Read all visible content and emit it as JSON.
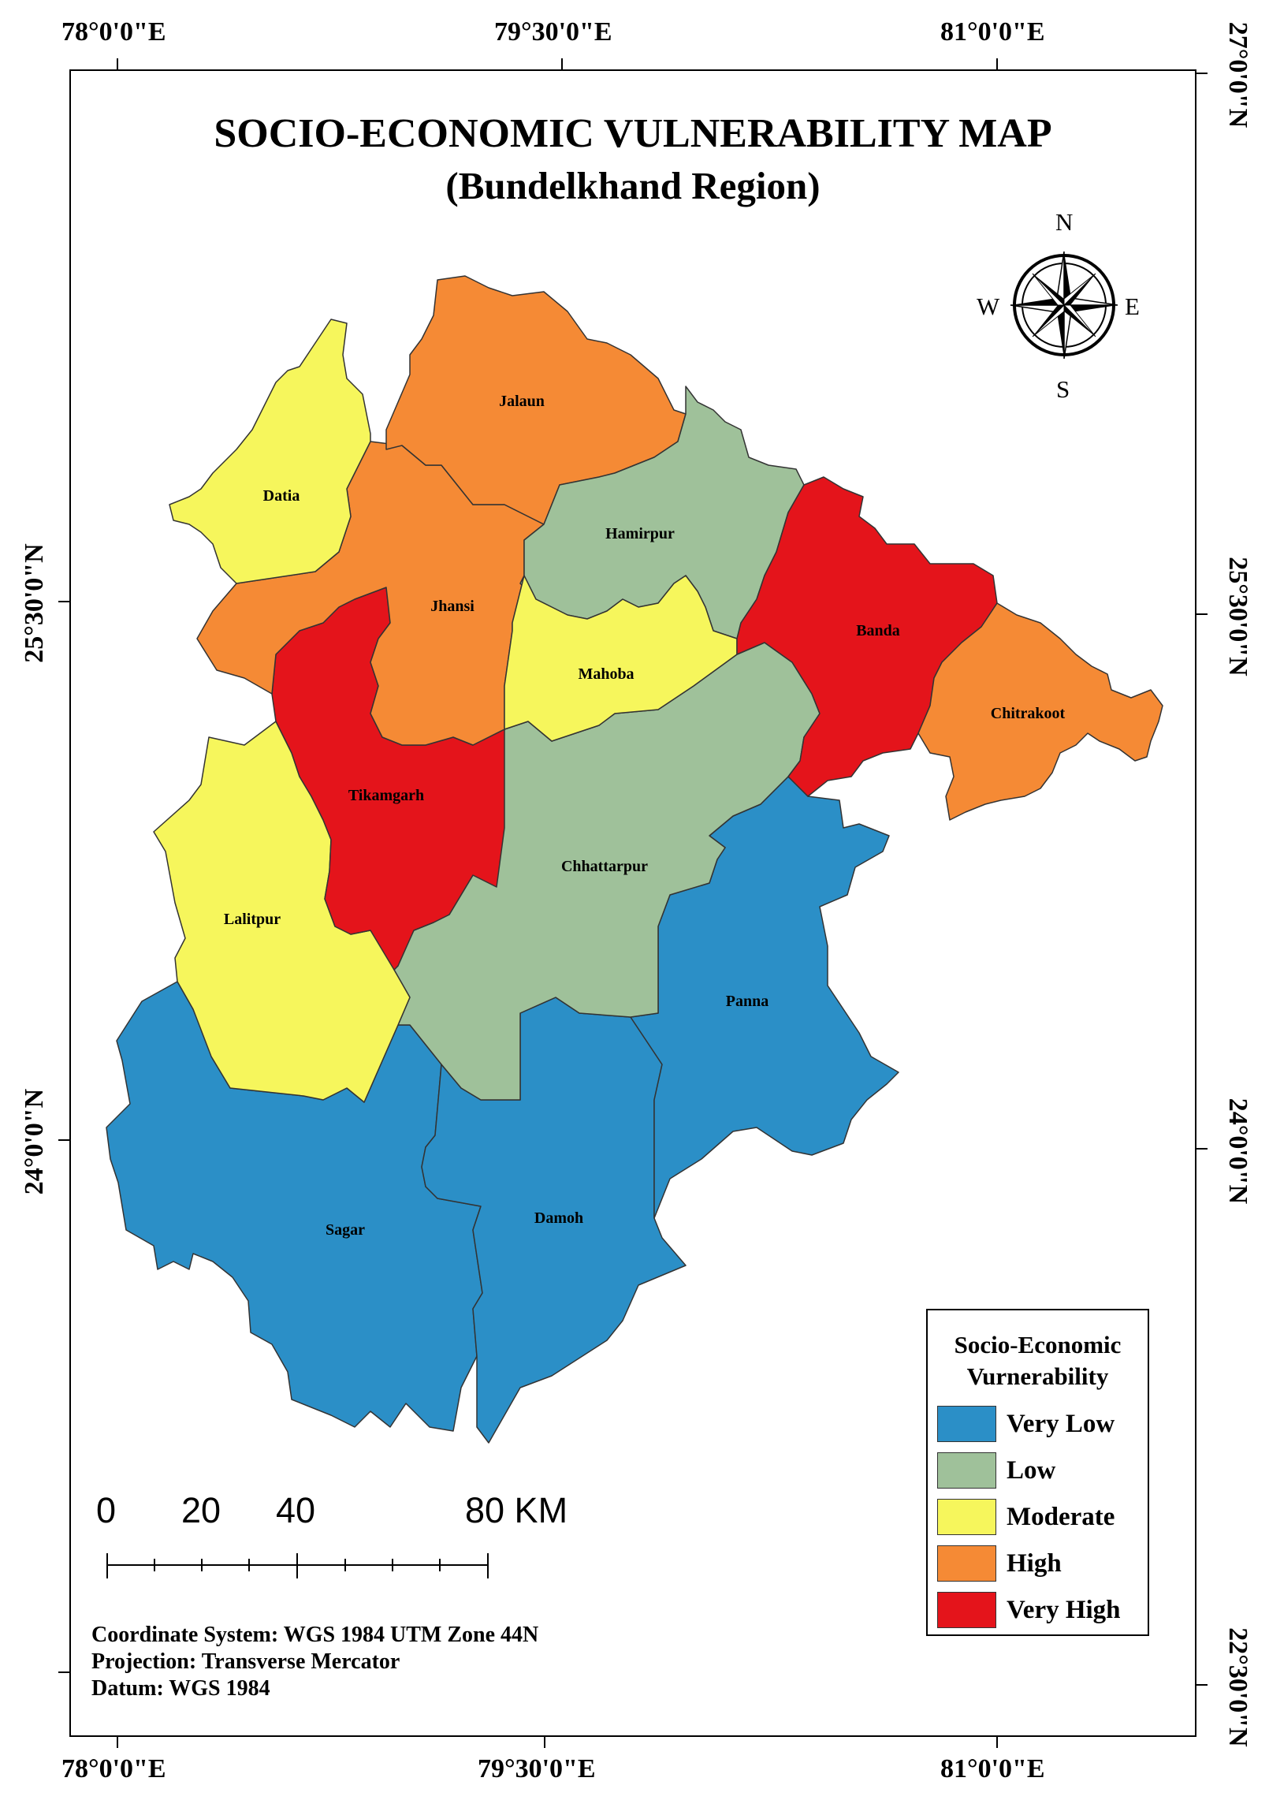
{
  "title": "SOCIO-ECONOMIC VULNERABILITY MAP",
  "subtitle": "(Bundelkhand Region)",
  "top_longitudes": [
    "78°0'0\"E",
    "79°30'0\"E",
    "81°0'0\"E"
  ],
  "bottom_longitudes": [
    "78°0'0\"E",
    "79°30'0\"E",
    "81°0'0\"E"
  ],
  "left_latitudes": [
    "25°30'0\"N",
    "24°0'0\"N"
  ],
  "right_latitudes": [
    "27°0'0\"N",
    "25°30'0\"N",
    "24°0'0\"N",
    "22°30'0\"N"
  ],
  "compass": {
    "n": "N",
    "s": "S",
    "e": "E",
    "w": "W",
    "icon": "compass-rose-icon"
  },
  "legend": {
    "title_line1": "Socio-Economic",
    "title_line2": "Vurnerability",
    "items": [
      {
        "label": "Very Low",
        "color": "#2b8fc7"
      },
      {
        "label": "Low",
        "color": "#9fc19a"
      },
      {
        "label": "Moderate",
        "color": "#f6f65c"
      },
      {
        "label": "High",
        "color": "#f58a35"
      },
      {
        "label": "Very High",
        "color": "#e4141b"
      }
    ]
  },
  "scale_bar": {
    "labels": [
      "0",
      "20",
      "40",
      "80 KM"
    ]
  },
  "info": {
    "coordinate_system": "Coordinate System: WGS 1984 UTM Zone 44N",
    "projection": "Projection: Transverse Mercator",
    "datum": "Datum: WGS 1984"
  },
  "districts": [
    {
      "name": "Jalaun",
      "class": "High"
    },
    {
      "name": "Datia",
      "class": "Moderate"
    },
    {
      "name": "Hamirpur",
      "class": "Low"
    },
    {
      "name": "Jhansi",
      "class": "High"
    },
    {
      "name": "Banda",
      "class": "Very High"
    },
    {
      "name": "Mahoba",
      "class": "Moderate"
    },
    {
      "name": "Chitrakoot",
      "class": "High"
    },
    {
      "name": "Tikamgarh",
      "class": "Very High"
    },
    {
      "name": "Chhattarpur",
      "class": "Low"
    },
    {
      "name": "Lalitpur",
      "class": "Moderate"
    },
    {
      "name": "Panna",
      "class": "Very Low"
    },
    {
      "name": "Sagar",
      "class": "Very Low"
    },
    {
      "name": "Damoh",
      "class": "Very Low"
    }
  ]
}
